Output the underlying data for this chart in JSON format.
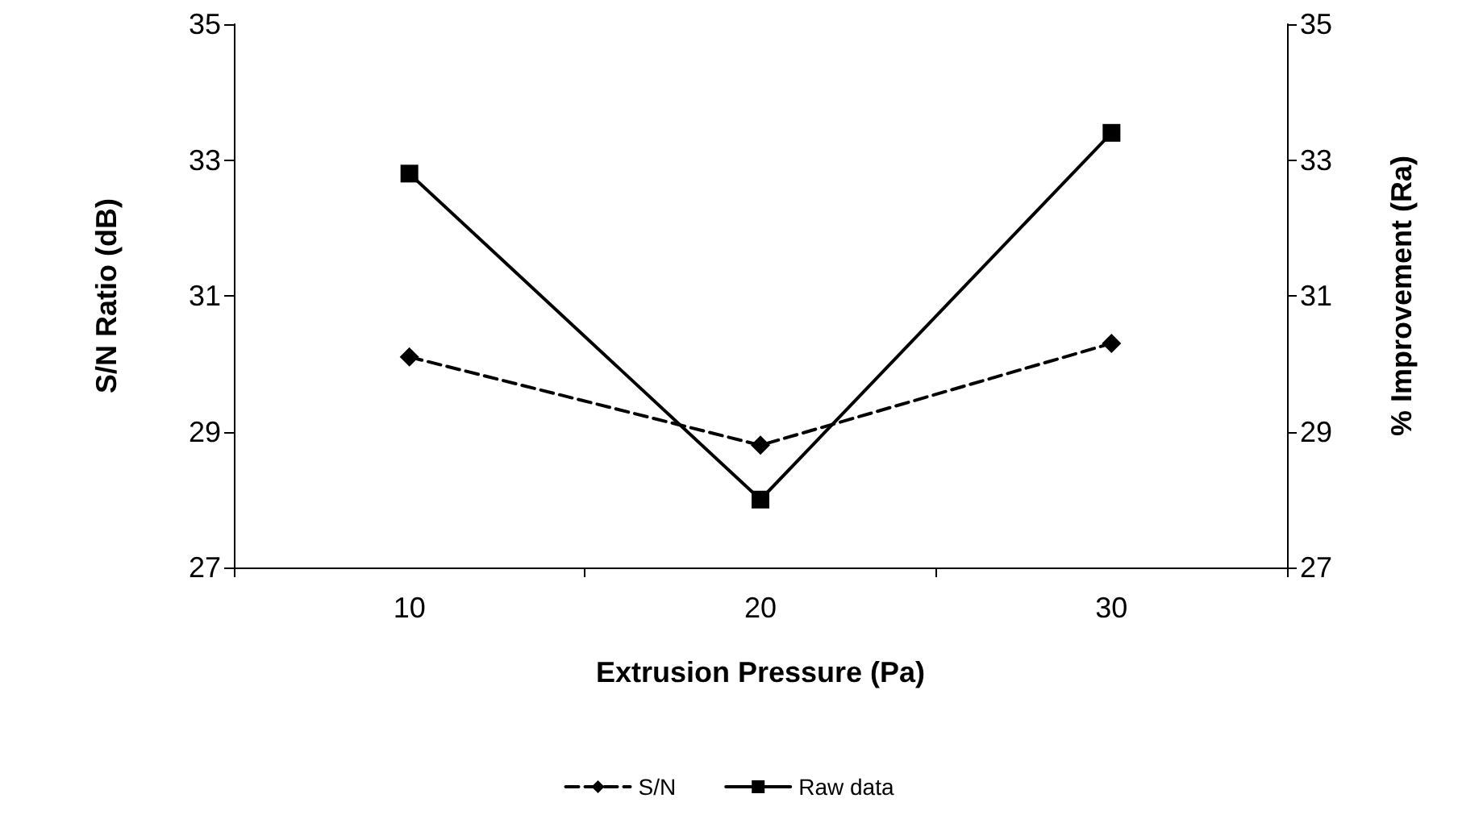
{
  "chart_data": {
    "type": "line",
    "xlabel": "Extrusion Pressure (Pa)",
    "ylabel": "S/N Ratio (dB)",
    "y2label": "% Improvement (Ra)",
    "categories": [
      "10",
      "20",
      "30"
    ],
    "series": [
      {
        "name": "S/N",
        "color": "#000000",
        "values": [
          30.1,
          28.8,
          30.3
        ],
        "marker": "diamond",
        "line_style": "dashed"
      },
      {
        "name": "Raw data",
        "color": "#000000",
        "values": [
          32.8,
          28.0,
          33.4
        ],
        "marker": "square",
        "line_style": "solid"
      }
    ],
    "ylim": [
      27,
      35
    ],
    "yticks": [
      27,
      29,
      31,
      33,
      35
    ],
    "y2lim": [
      27,
      35
    ],
    "y2ticks": [
      27,
      29,
      31,
      33,
      35
    ],
    "grid": false,
    "legend": "bottom"
  }
}
